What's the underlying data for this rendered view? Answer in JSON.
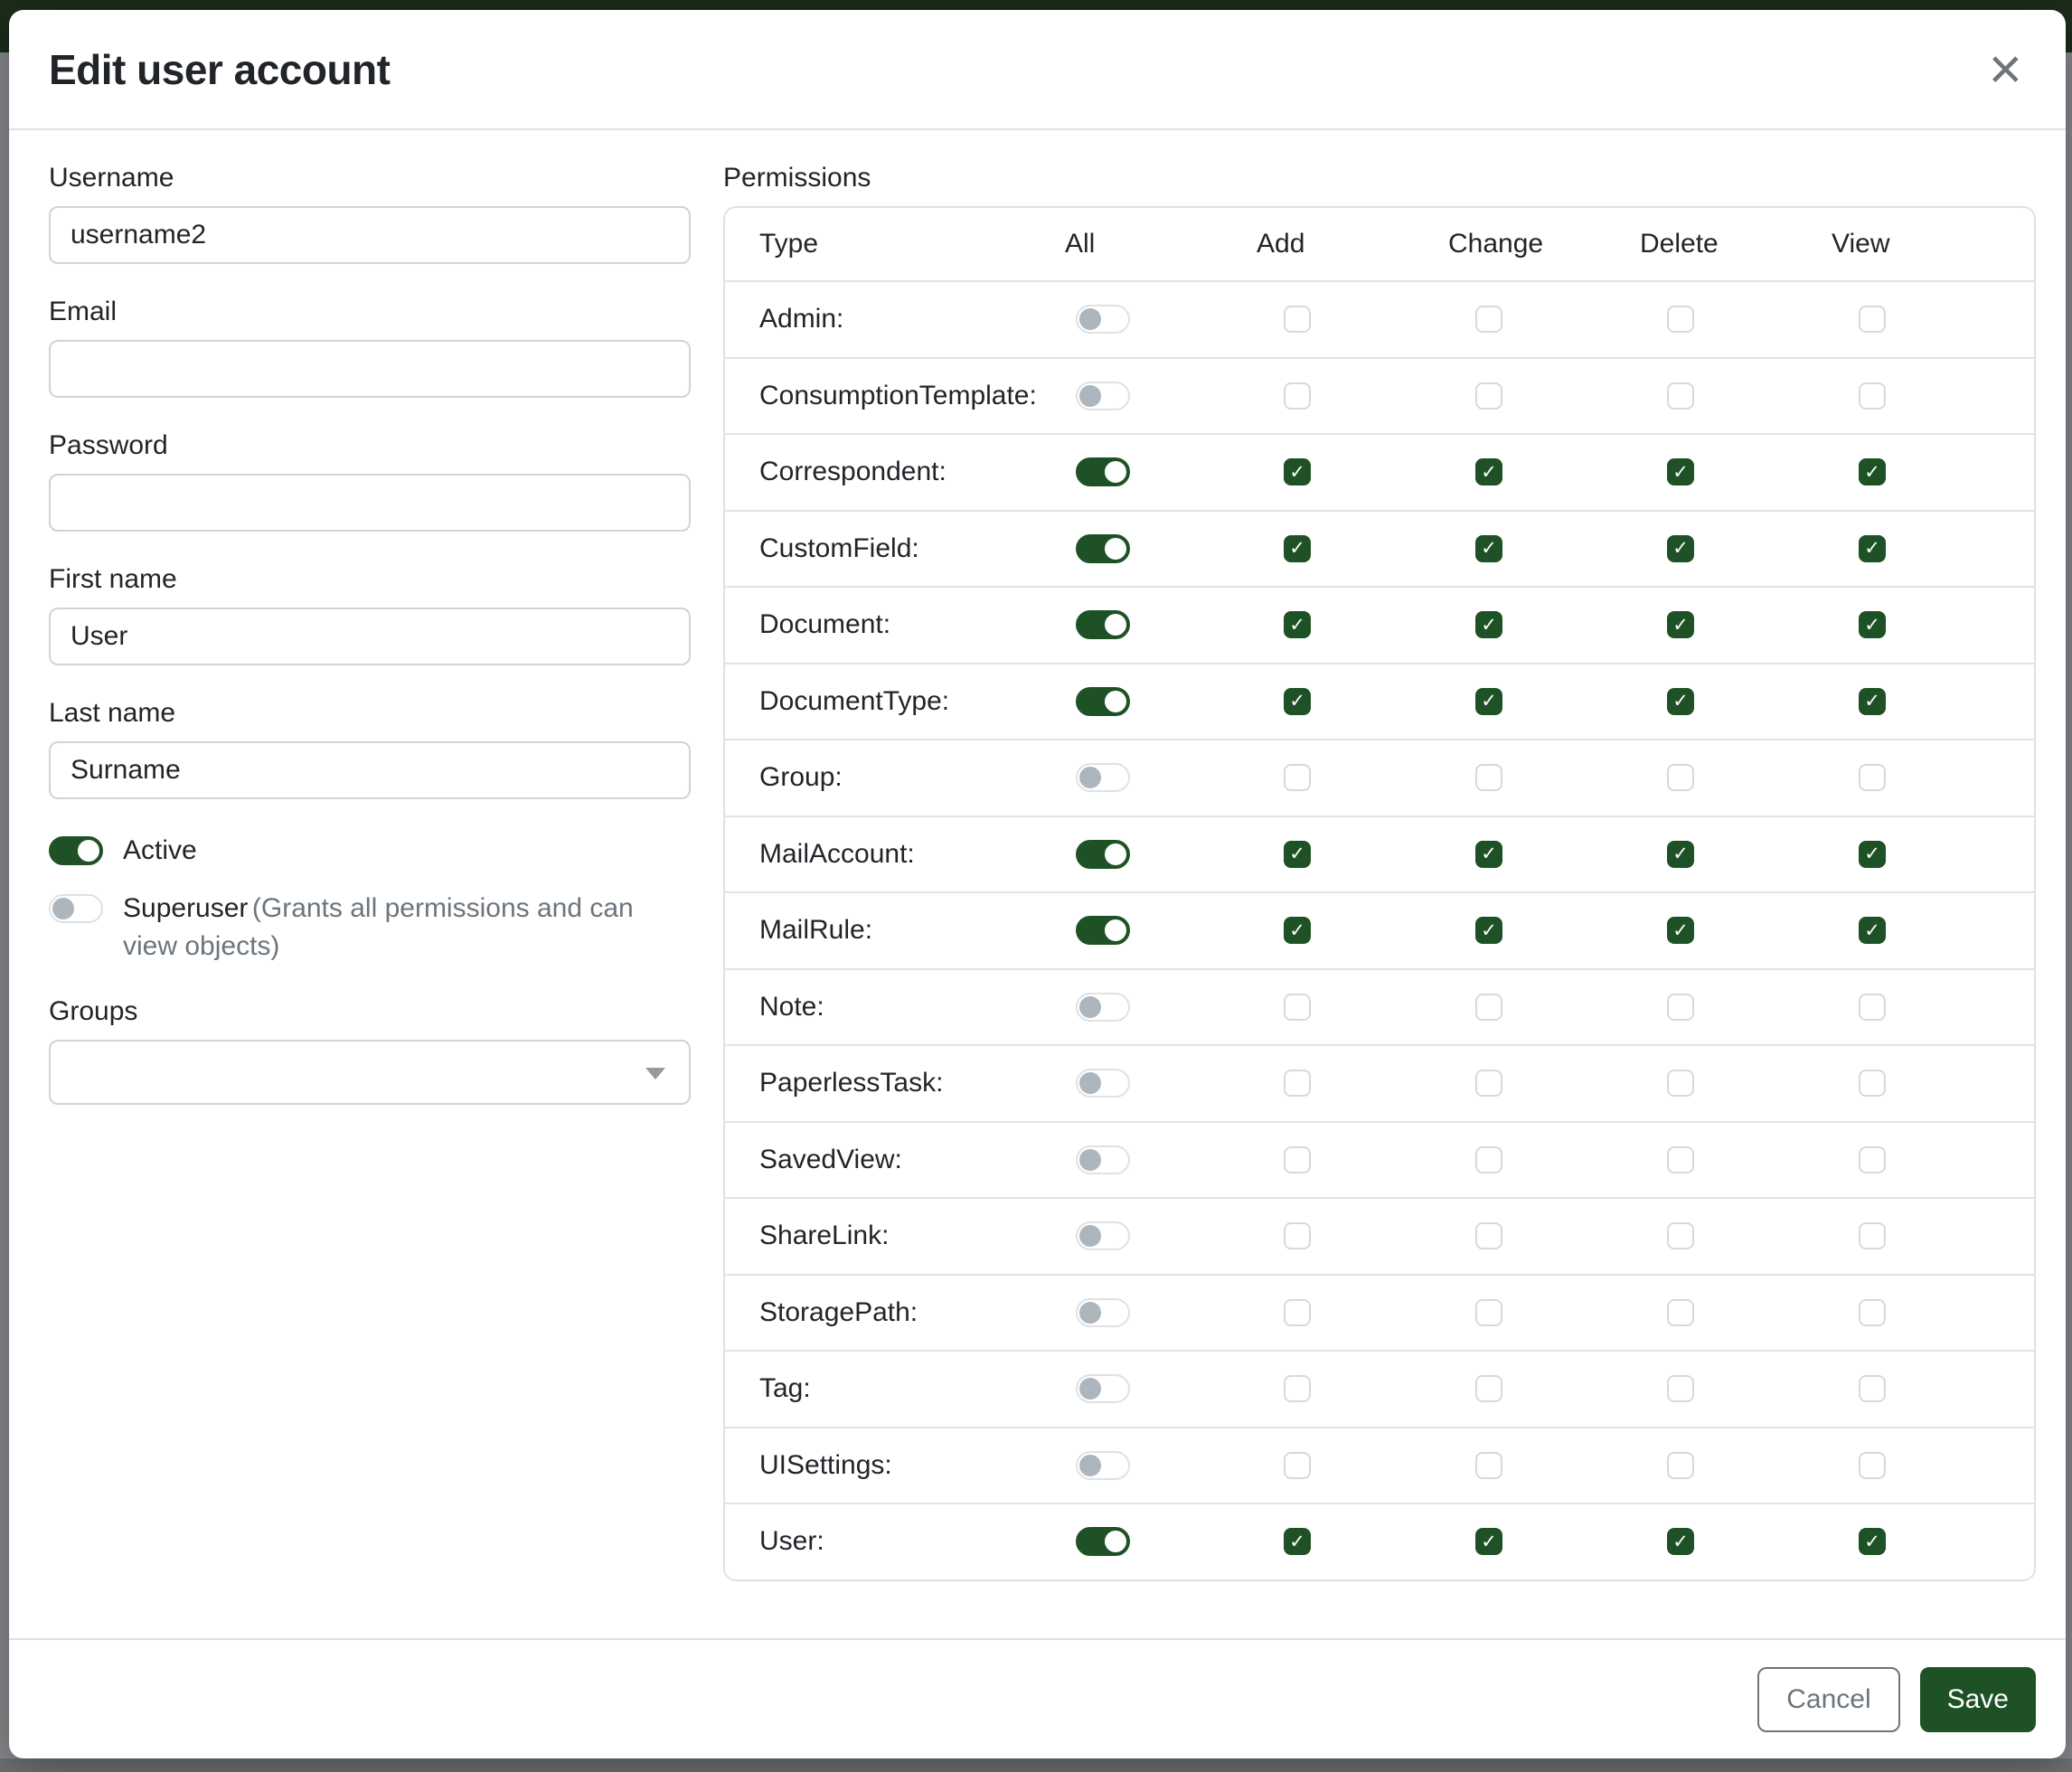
{
  "colors": {
    "primary": "#1e5226",
    "navbar": "#1b2d1b",
    "backdrop": "#87898c",
    "backdrop_bottom": "#6f7173",
    "border": "#dee2e6",
    "input_border": "#ced4da",
    "text": "#212529",
    "muted": "#6c757d",
    "knob_off": "#adb5bd"
  },
  "icons": {
    "close": "×",
    "check": "✓",
    "caret_down": "triangle-down"
  },
  "modal": {
    "title": "Edit user account",
    "fields": {
      "username": {
        "label": "Username",
        "value": "username2"
      },
      "email": {
        "label": "Email",
        "value": ""
      },
      "password": {
        "label": "Password",
        "value": ""
      },
      "first_name": {
        "label": "First name",
        "value": "User"
      },
      "last_name": {
        "label": "Last name",
        "value": "Surname"
      }
    },
    "toggles": {
      "active": {
        "label": "Active",
        "on": true
      },
      "superuser": {
        "label": "Superuser",
        "description": "(Grants all permissions and can view objects)",
        "on": false
      }
    },
    "groups": {
      "label": "Groups",
      "value": ""
    },
    "permissions": {
      "label": "Permissions",
      "columns": [
        "Type",
        "All",
        "Add",
        "Change",
        "Delete",
        "View"
      ],
      "rows": [
        {
          "type": "Admin:",
          "all": false,
          "add": false,
          "change": false,
          "delete": false,
          "view": false
        },
        {
          "type": "ConsumptionTemplate:",
          "all": false,
          "add": false,
          "change": false,
          "delete": false,
          "view": false
        },
        {
          "type": "Correspondent:",
          "all": true,
          "add": true,
          "change": true,
          "delete": true,
          "view": true
        },
        {
          "type": "CustomField:",
          "all": true,
          "add": true,
          "change": true,
          "delete": true,
          "view": true
        },
        {
          "type": "Document:",
          "all": true,
          "add": true,
          "change": true,
          "delete": true,
          "view": true
        },
        {
          "type": "DocumentType:",
          "all": true,
          "add": true,
          "change": true,
          "delete": true,
          "view": true
        },
        {
          "type": "Group:",
          "all": false,
          "add": false,
          "change": false,
          "delete": false,
          "view": false
        },
        {
          "type": "MailAccount:",
          "all": true,
          "add": true,
          "change": true,
          "delete": true,
          "view": true
        },
        {
          "type": "MailRule:",
          "all": true,
          "add": true,
          "change": true,
          "delete": true,
          "view": true
        },
        {
          "type": "Note:",
          "all": false,
          "add": false,
          "change": false,
          "delete": false,
          "view": false
        },
        {
          "type": "PaperlessTask:",
          "all": false,
          "add": false,
          "change": false,
          "delete": false,
          "view": false
        },
        {
          "type": "SavedView:",
          "all": false,
          "add": false,
          "change": false,
          "delete": false,
          "view": false
        },
        {
          "type": "ShareLink:",
          "all": false,
          "add": false,
          "change": false,
          "delete": false,
          "view": false
        },
        {
          "type": "StoragePath:",
          "all": false,
          "add": false,
          "change": false,
          "delete": false,
          "view": false
        },
        {
          "type": "Tag:",
          "all": false,
          "add": false,
          "change": false,
          "delete": false,
          "view": false
        },
        {
          "type": "UISettings:",
          "all": false,
          "add": false,
          "change": false,
          "delete": false,
          "view": false
        },
        {
          "type": "User:",
          "all": true,
          "add": true,
          "change": true,
          "delete": true,
          "view": true
        }
      ]
    },
    "footer": {
      "cancel": "Cancel",
      "save": "Save"
    }
  }
}
